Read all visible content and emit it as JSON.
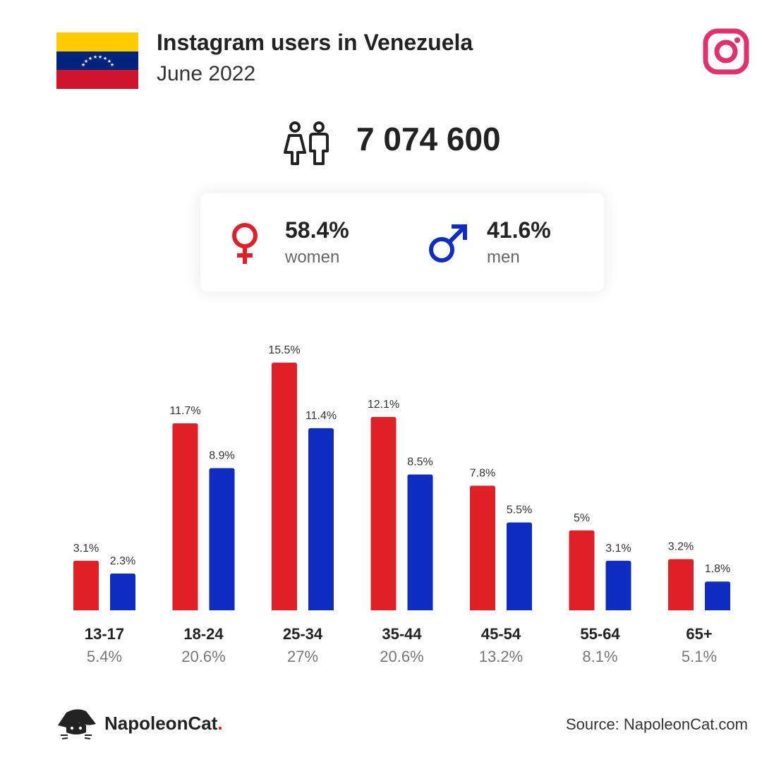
{
  "header": {
    "title": "Instagram users in Venezuela",
    "subtitle": "June 2022"
  },
  "colors": {
    "women": "#e01f27",
    "men": "#0f2dc3",
    "instagram": "#e1306c",
    "flag_yellow": "#ffcc00",
    "flag_blue": "#00247d",
    "flag_red": "#cf142b"
  },
  "icons": [
    "venezuela-flag-icon",
    "instagram-logo-icon",
    "users-icon",
    "female-symbol-icon",
    "male-symbol-icon",
    "napoleoncat-logo-icon"
  ],
  "total": {
    "value": "7 074 600"
  },
  "gender": {
    "women": {
      "pct": "58.4%",
      "label": "women"
    },
    "men": {
      "pct": "41.6%",
      "label": "men"
    }
  },
  "chart_data": {
    "type": "bar",
    "categories": [
      "13-17",
      "18-24",
      "25-34",
      "35-44",
      "45-54",
      "55-64",
      "65+"
    ],
    "category_totals": [
      "5.4%",
      "20.6%",
      "27%",
      "20.6%",
      "13.2%",
      "8.1%",
      "5.1%"
    ],
    "series": [
      {
        "values": [
          3.1,
          11.7,
          15.5,
          12.1,
          7.8,
          5,
          3.2
        ],
        "labels": [
          "3.1%",
          "11.7%",
          "15.5%",
          "12.1%",
          "7.8%",
          "5%",
          "3.2%"
        ],
        "color": "#e01f27"
      },
      {
        "values": [
          2.3,
          8.9,
          11.4,
          8.5,
          5.5,
          3.1,
          1.8
        ],
        "labels": [
          "2.3%",
          "8.9%",
          "11.4%",
          "8.5%",
          "5.5%",
          "3.1%",
          "1.8%"
        ],
        "color": "#0f2dc3"
      }
    ],
    "title": "",
    "xlabel": "",
    "ylabel": "",
    "ylim": [
      0,
      15.5
    ],
    "grid": false,
    "legend": "none"
  },
  "footer": {
    "brand": "NapoleonCat",
    "brand_dot": ".",
    "source": "Source: NapoleonCat.com"
  }
}
